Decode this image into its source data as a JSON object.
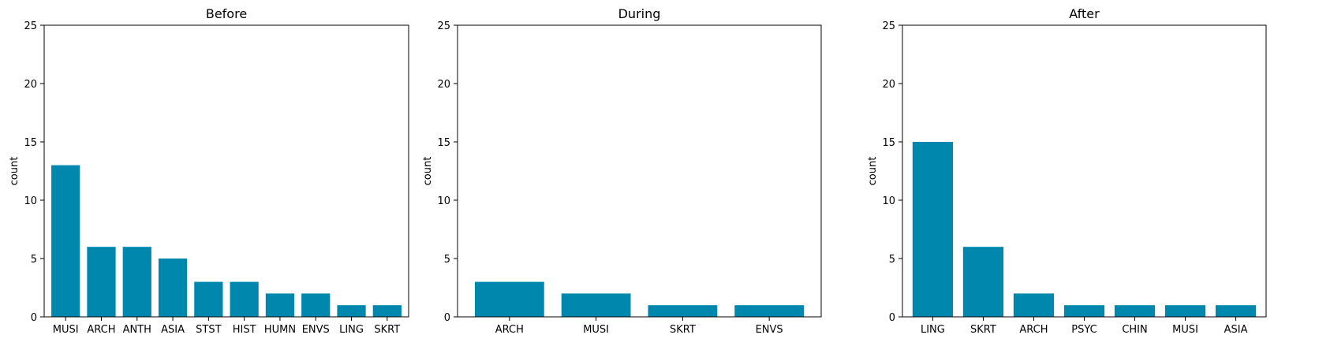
{
  "chart_data": [
    {
      "type": "bar",
      "title": "Before",
      "ylabel": "count",
      "xlabel": "",
      "ylim": [
        0,
        25
      ],
      "yticks": [
        0,
        5,
        10,
        15,
        20,
        25
      ],
      "grid": false,
      "bar_color": "#0087ae",
      "categories": [
        "MUSI",
        "ARCH",
        "ANTH",
        "ASIA",
        "STST",
        "HIST",
        "HUMN",
        "ENVS",
        "LING",
        "SKRT"
      ],
      "values": [
        13,
        6,
        6,
        5,
        3,
        3,
        2,
        2,
        1,
        1
      ]
    },
    {
      "type": "bar",
      "title": "During",
      "ylabel": "count",
      "xlabel": "",
      "ylim": [
        0,
        25
      ],
      "yticks": [
        0,
        5,
        10,
        15,
        20,
        25
      ],
      "grid": false,
      "bar_color": "#0087ae",
      "categories": [
        "ARCH",
        "MUSI",
        "SKRT",
        "ENVS"
      ],
      "values": [
        3,
        2,
        1,
        1
      ]
    },
    {
      "type": "bar",
      "title": "After",
      "ylabel": "count",
      "xlabel": "",
      "ylim": [
        0,
        25
      ],
      "yticks": [
        0,
        5,
        10,
        15,
        20,
        25
      ],
      "grid": false,
      "bar_color": "#0087ae",
      "categories": [
        "LING",
        "SKRT",
        "ARCH",
        "PSYC",
        "CHIN",
        "MUSI",
        "ASIA"
      ],
      "values": [
        15,
        6,
        2,
        1,
        1,
        1,
        1
      ]
    }
  ]
}
